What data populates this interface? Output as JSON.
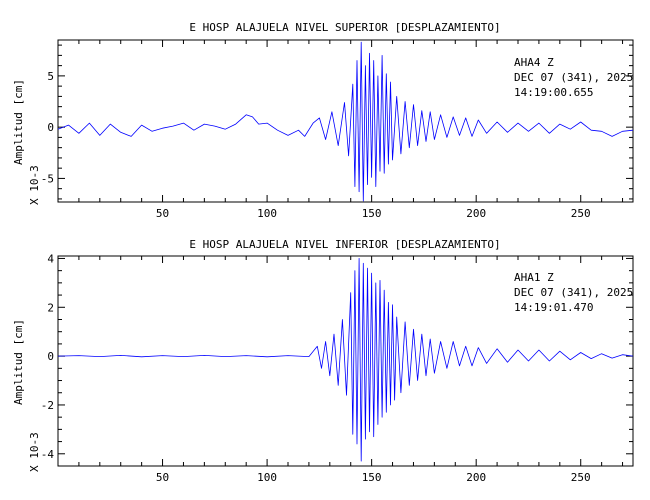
{
  "chart_data": [
    {
      "type": "line",
      "title": "E HOSP ALAJUELA NIVEL SUPERIOR [DESPLAZAMIENTO]",
      "ylabel": "Amplitud [cm]",
      "scale_label": "X 10-3",
      "station": "AHA4   Z",
      "date": "DEC 07 (341), 2025",
      "time": "14:19:00.655",
      "xlim": [
        0,
        275
      ],
      "ylim": [
        -7.3,
        8.5
      ],
      "xticks_major": [
        50,
        100,
        150,
        200,
        250
      ],
      "xticks_minor_step": 10,
      "yticks_major": [
        -5,
        0,
        5
      ],
      "yticks_minor_step": 1,
      "line_color": "#0000ff",
      "series": [
        {
          "x": [
            0,
            5,
            10,
            15,
            20,
            25,
            30,
            35,
            40,
            45,
            50,
            55,
            60,
            65,
            70,
            75,
            80,
            85,
            90,
            93,
            96,
            100,
            105,
            110,
            115,
            118,
            122,
            125,
            128,
            131,
            134,
            137,
            139,
            141,
            142,
            143,
            144,
            145,
            146,
            147,
            148,
            149,
            150,
            151,
            152,
            153,
            154,
            155,
            156,
            157,
            158,
            159,
            160,
            162,
            164,
            166,
            168,
            170,
            172,
            174,
            176,
            178,
            180,
            183,
            186,
            189,
            192,
            195,
            198,
            201,
            205,
            210,
            215,
            220,
            225,
            230,
            235,
            240,
            245,
            250,
            255,
            260,
            265,
            270,
            275
          ],
          "y": [
            -0.2,
            0.2,
            -0.6,
            0.4,
            -0.8,
            0.3,
            -0.5,
            -0.9,
            0.2,
            -0.4,
            -0.1,
            0.1,
            0.4,
            -0.3,
            0.3,
            0.1,
            -0.2,
            0.3,
            1.2,
            1.0,
            0.3,
            0.4,
            -0.3,
            -0.8,
            -0.3,
            -0.9,
            0.4,
            0.9,
            -1.2,
            1.5,
            -1.8,
            2.4,
            -2.8,
            4.2,
            -5.8,
            6.5,
            -6.3,
            8.3,
            -7.2,
            6.0,
            -5.6,
            7.2,
            -4.9,
            6.5,
            -5.8,
            5.0,
            -4.3,
            7.0,
            -4.5,
            5.2,
            -3.6,
            4.4,
            -3.2,
            3.0,
            -2.6,
            2.5,
            -2.0,
            2.2,
            -1.8,
            1.6,
            -1.4,
            1.5,
            -1.2,
            1.2,
            -1.0,
            1.0,
            -0.8,
            0.9,
            -0.9,
            0.7,
            -0.6,
            0.5,
            -0.5,
            0.4,
            -0.4,
            0.4,
            -0.6,
            0.3,
            -0.2,
            0.5,
            -0.3,
            -0.4,
            -0.9,
            -0.4,
            -0.3
          ]
        }
      ]
    },
    {
      "type": "line",
      "title": "E HOSP ALAJUELA NIVEL INFERIOR [DESPLAZAMIENTO]",
      "ylabel": "Amplitud [cm]",
      "scale_label": "X 10-3",
      "station": "AHA1   Z",
      "date": "DEC 07 (341), 2025",
      "time": "14:19:01.470",
      "xlim": [
        0,
        275
      ],
      "ylim": [
        -4.5,
        4.1
      ],
      "xticks_major": [
        50,
        100,
        150,
        200,
        250
      ],
      "xticks_minor_step": 10,
      "yticks_major": [
        -4,
        -2,
        0,
        2,
        4
      ],
      "yticks_minor_step": 0.5,
      "line_color": "#0000ff",
      "series": [
        {
          "x": [
            0,
            10,
            20,
            30,
            40,
            50,
            60,
            70,
            80,
            90,
            100,
            110,
            120,
            124,
            126,
            128,
            130,
            132,
            134,
            136,
            138,
            140,
            141,
            142,
            143,
            144,
            145,
            146,
            147,
            148,
            149,
            150,
            151,
            152,
            153,
            154,
            155,
            156,
            157,
            158,
            159,
            160,
            161,
            162,
            164,
            166,
            168,
            170,
            172,
            174,
            176,
            178,
            180,
            183,
            186,
            189,
            192,
            195,
            198,
            201,
            205,
            210,
            215,
            220,
            225,
            230,
            235,
            240,
            245,
            250,
            255,
            260,
            265,
            270,
            275
          ],
          "y": [
            0.0,
            0.02,
            -0.02,
            0.03,
            -0.03,
            0.02,
            -0.02,
            0.03,
            -0.02,
            0.02,
            -0.03,
            0.02,
            -0.02,
            0.4,
            -0.5,
            0.6,
            -0.8,
            0.9,
            -1.2,
            1.5,
            -1.6,
            2.6,
            -3.2,
            3.5,
            -3.6,
            4.0,
            -4.3,
            3.8,
            -3.4,
            3.6,
            -3.1,
            3.4,
            -3.3,
            3.0,
            -2.8,
            3.1,
            -2.5,
            2.7,
            -2.3,
            2.2,
            -2.0,
            2.1,
            -1.8,
            1.6,
            -1.5,
            1.4,
            -1.2,
            1.1,
            -1.0,
            0.9,
            -0.8,
            0.7,
            -0.7,
            0.6,
            -0.5,
            0.6,
            -0.4,
            0.4,
            -0.4,
            0.35,
            -0.3,
            0.3,
            -0.25,
            0.25,
            -0.2,
            0.25,
            -0.2,
            0.2,
            -0.15,
            0.15,
            -0.1,
            0.1,
            -0.08,
            0.06,
            0.0
          ]
        }
      ]
    }
  ]
}
